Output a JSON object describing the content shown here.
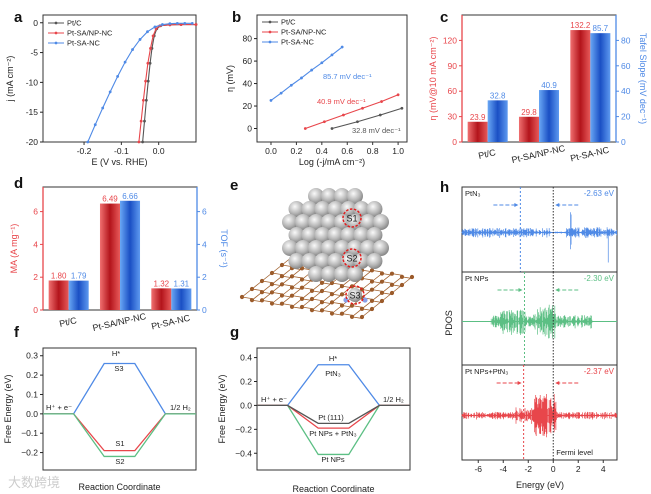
{
  "figure": {
    "panel_letters": [
      "a",
      "b",
      "c",
      "d",
      "e",
      "f",
      "g",
      "h"
    ],
    "watermark": "大数跨境"
  },
  "colors": {
    "red": "#e8464b",
    "blue": "#4f8ae6",
    "gray": "#555555",
    "green": "#5cbf84"
  },
  "structure_panel": {
    "sites": [
      "S1",
      "S2",
      "S3"
    ]
  },
  "chart_data": [
    {
      "id": "a",
      "type": "line",
      "xlabel": "E (V vs. RHE)",
      "ylabel": "j (mA cm⁻²)",
      "xlim": [
        -0.31,
        0.1
      ],
      "ylim": [
        -20,
        1.3
      ],
      "xticks": [
        -0.2,
        -0.1,
        0.0
      ],
      "xtick_labels": [
        "-0.2",
        "-0.1",
        "0.0"
      ],
      "yticks": [
        0,
        -5,
        -10,
        -15,
        -20
      ],
      "ytick_labels": [
        "0",
        "-5",
        "-10",
        "-15",
        "-20"
      ],
      "legend": "top-left",
      "series": [
        {
          "name": "Pt/C",
          "color": "#555555",
          "x": [
            -0.043,
            -0.038,
            -0.033,
            -0.028,
            -0.023,
            -0.018,
            -0.012,
            -0.005,
            0.005,
            0.03,
            0.06,
            0.1
          ],
          "y": [
            -20,
            -16.5,
            -13,
            -9.8,
            -6.8,
            -4.3,
            -2.2,
            -1.0,
            -0.5,
            -0.35,
            -0.3,
            -0.3
          ]
        },
        {
          "name": "Pt-SA/NP-NC",
          "color": "#e8464b",
          "x": [
            -0.053,
            -0.047,
            -0.041,
            -0.035,
            -0.029,
            -0.022,
            -0.015,
            -0.007,
            0.003,
            0.03,
            0.06,
            0.1
          ],
          "y": [
            -20,
            -16.5,
            -13,
            -9.8,
            -6.8,
            -4.3,
            -2.2,
            -1.0,
            -0.5,
            -0.35,
            -0.3,
            -0.3
          ]
        },
        {
          "name": "Pt-SA-NC",
          "color": "#4f8ae6",
          "x": [
            -0.19,
            -0.17,
            -0.15,
            -0.13,
            -0.11,
            -0.09,
            -0.07,
            -0.05,
            -0.03,
            -0.01,
            0.01,
            0.03,
            0.05,
            0.07,
            0.09
          ],
          "y": [
            -20,
            -17.1,
            -14.3,
            -11.6,
            -9.0,
            -6.6,
            -4.5,
            -2.8,
            -1.5,
            -0.7,
            -0.3,
            -0.15,
            -0.1,
            -0.1,
            -0.1
          ]
        }
      ]
    },
    {
      "id": "b",
      "type": "line",
      "xlabel": "Log (-j/mA cm⁻²)",
      "ylabel": "η (mV)",
      "xlim": [
        -0.11,
        1.07
      ],
      "ylim": [
        -12,
        101
      ],
      "xticks": [
        0,
        0.2,
        0.4,
        0.6,
        0.8,
        1.0
      ],
      "xtick_labels": [
        "0.0",
        "0.2",
        "0.4",
        "0.6",
        "0.8",
        "1.0"
      ],
      "yticks": [
        0,
        20,
        40,
        60,
        80
      ],
      "ytick_labels": [
        "0",
        "20",
        "40",
        "60",
        "80"
      ],
      "legend": "top-left",
      "series": [
        {
          "name": "Pt/C",
          "color": "#555555",
          "x": [
            0.48,
            0.68,
            0.86,
            1.03
          ],
          "y": [
            0,
            6,
            12,
            18
          ],
          "tafel_label": "32.8 mV dec⁻¹"
        },
        {
          "name": "Pt-SA/NP-NC",
          "color": "#e8464b",
          "x": [
            0.27,
            0.42,
            0.57,
            0.72,
            0.87,
            1.0
          ],
          "y": [
            0,
            6,
            12,
            18,
            24,
            30
          ],
          "tafel_label": "40.9 mV dec⁻¹"
        },
        {
          "name": "Pt-SA-NC",
          "color": "#4f8ae6",
          "x": [
            0,
            0.08,
            0.16,
            0.24,
            0.32,
            0.4,
            0.48,
            0.56
          ],
          "y": [
            25,
            31.5,
            38.5,
            45,
            52,
            58.5,
            65.5,
            72.5
          ],
          "tafel_label": "85.7 mV dec⁻¹"
        }
      ]
    },
    {
      "id": "c",
      "type": "bar",
      "categories": [
        "Pt/C",
        "Pt-SA/NP-NC",
        "Pt-SA-NC"
      ],
      "ylabel": "η (mV@10 mA cm⁻²)",
      "ylabel_right": "Tafel Slope (mV dec⁻¹)",
      "ylim": [
        0,
        150
      ],
      "ylim_right": [
        0,
        100
      ],
      "yticks": [
        0,
        30,
        60,
        90,
        120
      ],
      "ytick_labels": [
        "0",
        "30",
        "60",
        "90",
        "120"
      ],
      "yticks_right": [
        0,
        20,
        40,
        60,
        80
      ],
      "ytick_labels_right": [
        "0",
        "20",
        "40",
        "60",
        "80"
      ],
      "series": [
        {
          "name": "η",
          "axis": "left",
          "color": "#e8464b",
          "values": [
            23.9,
            29.8,
            132.2
          ],
          "labels": [
            "23.9",
            "29.8",
            "132.2"
          ]
        },
        {
          "name": "Tafel Slope",
          "axis": "right",
          "color": "#4f8ae6",
          "values": [
            32.8,
            40.9,
            85.7
          ],
          "labels": [
            "32.8",
            "40.9",
            "85.7"
          ]
        }
      ]
    },
    {
      "id": "d",
      "type": "bar",
      "categories": [
        "Pt/C",
        "Pt-SA/NP-NC",
        "Pt-SA-NC"
      ],
      "ylabel": "MA (A mg⁻¹)",
      "ylabel_right": "TOF (s⁻¹)",
      "ylim": [
        0,
        7.5
      ],
      "ylim_right": [
        0,
        7.5
      ],
      "yticks": [
        0,
        2,
        4,
        6
      ],
      "ytick_labels": [
        "0",
        "2",
        "4",
        "6"
      ],
      "yticks_right": [
        0,
        2,
        4,
        6
      ],
      "ytick_labels_right": [
        "0",
        "2",
        "4",
        "6"
      ],
      "series": [
        {
          "name": "MA",
          "axis": "left",
          "color": "#e8464b",
          "values": [
            1.8,
            6.49,
            1.32
          ],
          "labels": [
            "1.80",
            "6.49",
            "1.32"
          ]
        },
        {
          "name": "TOF",
          "axis": "right",
          "color": "#4f8ae6",
          "values": [
            1.79,
            6.66,
            1.31
          ],
          "labels": [
            "1.79",
            "6.66",
            "1.31"
          ]
        }
      ]
    },
    {
      "id": "f",
      "type": "line",
      "xlabel": "Reaction Coordinate",
      "ylabel": "Free Energy (eV)",
      "xlim": [
        0,
        5
      ],
      "ylim": [
        -0.29,
        0.34
      ],
      "yticks": [
        0.3,
        0.2,
        0.1,
        0.0,
        -0.1,
        -0.2
      ],
      "ytick_labels": [
        "0.3",
        "0.2",
        "0.1",
        "0.0",
        "−0.1",
        "−0.2"
      ],
      "series": [
        {
          "name": "S3",
          "color": "#4f8ae6",
          "x": [
            0,
            1,
            2,
            3,
            4,
            5
          ],
          "y": [
            0,
            0,
            0.26,
            0.26,
            0,
            0
          ]
        },
        {
          "name": "S1",
          "color": "#e8464b",
          "x": [
            0,
            1,
            2,
            3,
            4,
            5
          ],
          "y": [
            0,
            0,
            -0.19,
            -0.19,
            0,
            0
          ]
        },
        {
          "name": "S2",
          "color": "#5cbf84",
          "x": [
            0,
            1,
            2,
            3,
            4,
            5
          ],
          "y": [
            0,
            0,
            -0.22,
            -0.22,
            0,
            0
          ]
        }
      ],
      "annotations": [
        "H*",
        "S3",
        "S1",
        "S2",
        "H⁺ + e⁻",
        "1/2 H₂"
      ]
    },
    {
      "id": "g",
      "type": "line",
      "xlabel": "Reaction Coordinate",
      "ylabel": "Free Energy (eV)",
      "xlim": [
        0,
        5
      ],
      "ylim": [
        -0.54,
        0.48
      ],
      "yticks": [
        0.4,
        0.2,
        0.0,
        -0.2,
        -0.4
      ],
      "ytick_labels": [
        "0.4",
        "0.2",
        "0.0",
        "−0.2",
        "−0.4"
      ],
      "series": [
        {
          "name": "PtN₃",
          "color": "#4f8ae6",
          "x": [
            0,
            1,
            2,
            3,
            4,
            5
          ],
          "y": [
            0,
            0,
            0.34,
            0.34,
            0,
            0
          ]
        },
        {
          "name": "Pt NPs",
          "color": "#5cbf84",
          "x": [
            0,
            1,
            2,
            3,
            4,
            5
          ],
          "y": [
            0,
            0,
            -0.41,
            -0.41,
            0,
            0
          ]
        },
        {
          "name": "Pt NPs + PtN₃",
          "color": "#e8464b",
          "x": [
            0,
            1,
            2,
            3,
            4,
            5
          ],
          "y": [
            0,
            0,
            -0.19,
            -0.19,
            0,
            0
          ]
        },
        {
          "name": "Pt (111)",
          "color": "#555555",
          "x": [
            0,
            1,
            2,
            3,
            4,
            5
          ],
          "y": [
            0,
            0,
            -0.15,
            -0.15,
            0,
            0
          ]
        }
      ],
      "annotations": [
        "H*",
        "PtN₃",
        "Pt (111)",
        "Pt NPs + PtN₃",
        "Pt NPs",
        "H⁺ + e⁻",
        "1/2 H₂"
      ]
    },
    {
      "id": "h",
      "type": "line",
      "xlabel": "Energy (eV)",
      "ylabel": "PDOS",
      "xlim": [
        -7.3,
        5.1
      ],
      "xticks": [
        -6,
        -4,
        -2,
        0,
        2,
        4
      ],
      "xtick_labels": [
        "-6",
        "-4",
        "-2",
        "0",
        "2",
        "4"
      ],
      "fermi_level": 0,
      "fermi_label": "Fermi level",
      "panels": [
        {
          "name": "PtN₃",
          "d_band_center": -2.63,
          "center_label": "-2.63 eV",
          "color": "#4f8ae6"
        },
        {
          "name": "Pt NPs",
          "d_band_center": -2.3,
          "center_label": "-2.30 eV",
          "color": "#5cbf84"
        },
        {
          "name": "Pt NPs+PtN₃",
          "d_band_center": -2.37,
          "center_label": "-2.37 eV",
          "color": "#e8464b"
        }
      ]
    }
  ]
}
